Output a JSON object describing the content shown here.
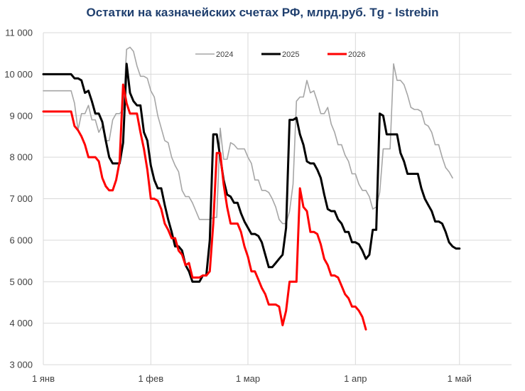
{
  "chart_data": {
    "type": "line",
    "title": "Остатки на казначейских счетах РФ, млрд.руб. Tg - Istrebin",
    "xlabel": "",
    "ylabel": "",
    "ylim": [
      3000,
      11000
    ],
    "xlim": [
      0,
      135
    ],
    "y_ticks": [
      "3 000",
      "4 000",
      "5 000",
      "6 000",
      "7 000",
      "8 000",
      "9 000",
      "10 000",
      "11 000"
    ],
    "y_tick_values": [
      3000,
      4000,
      5000,
      6000,
      7000,
      8000,
      9000,
      10000,
      11000
    ],
    "x_ticks": [
      {
        "label": "1 янв",
        "day": 0
      },
      {
        "label": "1 фев",
        "day": 31
      },
      {
        "label": "1 мар",
        "day": 59
      },
      {
        "label": "1 апр",
        "day": 90
      },
      {
        "label": "1 май",
        "day": 120
      }
    ],
    "legend_position": "top-center",
    "series": [
      {
        "name": "2024",
        "color": "#a6a6a6",
        "points": [
          [
            0,
            9600
          ],
          [
            8,
            9600
          ],
          [
            9,
            9300
          ],
          [
            10,
            8650
          ],
          [
            11,
            9050
          ],
          [
            12,
            9050
          ],
          [
            13,
            9250
          ],
          [
            14,
            8900
          ],
          [
            15,
            8900
          ],
          [
            16,
            8600
          ],
          [
            17,
            8750
          ],
          [
            18,
            8400
          ],
          [
            19,
            8400
          ],
          [
            20,
            8900
          ],
          [
            21,
            9050
          ],
          [
            22,
            9050
          ],
          [
            23,
            9150
          ],
          [
            24,
            10600
          ],
          [
            25,
            10650
          ],
          [
            26,
            10550
          ],
          [
            27,
            10200
          ],
          [
            28,
            9950
          ],
          [
            29,
            9950
          ],
          [
            30,
            9900
          ],
          [
            31,
            9600
          ],
          [
            32,
            9450
          ],
          [
            33,
            9000
          ],
          [
            34,
            8700
          ],
          [
            35,
            8400
          ],
          [
            36,
            8350
          ],
          [
            37,
            8000
          ],
          [
            38,
            7800
          ],
          [
            39,
            7650
          ],
          [
            40,
            7200
          ],
          [
            41,
            7050
          ],
          [
            42,
            7050
          ],
          [
            43,
            6900
          ],
          [
            44,
            6700
          ],
          [
            45,
            6500
          ],
          [
            46,
            6500
          ],
          [
            47,
            6500
          ],
          [
            48,
            6500
          ],
          [
            49,
            6550
          ],
          [
            50,
            6550
          ],
          [
            51,
            8700
          ],
          [
            52,
            7950
          ],
          [
            53,
            7950
          ],
          [
            54,
            8350
          ],
          [
            55,
            8300
          ],
          [
            56,
            8200
          ],
          [
            57,
            8200
          ],
          [
            58,
            8200
          ],
          [
            59,
            8000
          ],
          [
            60,
            7850
          ],
          [
            61,
            7450
          ],
          [
            62,
            7450
          ],
          [
            63,
            7200
          ],
          [
            64,
            7200
          ],
          [
            65,
            7150
          ],
          [
            66,
            7000
          ],
          [
            67,
            6800
          ],
          [
            68,
            6500
          ],
          [
            69,
            6400
          ],
          [
            70,
            6400
          ],
          [
            71,
            6700
          ],
          [
            72,
            7350
          ],
          [
            73,
            9350
          ],
          [
            74,
            9450
          ],
          [
            75,
            9450
          ],
          [
            76,
            9850
          ],
          [
            77,
            9550
          ],
          [
            78,
            9600
          ],
          [
            79,
            9350
          ],
          [
            80,
            9050
          ],
          [
            81,
            9050
          ],
          [
            82,
            9200
          ],
          [
            83,
            8800
          ],
          [
            84,
            8600
          ],
          [
            85,
            8300
          ],
          [
            86,
            8300
          ],
          [
            87,
            8050
          ],
          [
            88,
            7900
          ],
          [
            89,
            7600
          ],
          [
            90,
            7600
          ],
          [
            91,
            7350
          ],
          [
            92,
            7200
          ],
          [
            93,
            7200
          ],
          [
            94,
            7050
          ],
          [
            95,
            6750
          ],
          [
            96,
            6800
          ],
          [
            97,
            7150
          ],
          [
            98,
            8200
          ],
          [
            99,
            8200
          ],
          [
            100,
            8200
          ],
          [
            101,
            10250
          ],
          [
            102,
            9850
          ],
          [
            103,
            9850
          ],
          [
            104,
            9750
          ],
          [
            105,
            9500
          ],
          [
            106,
            9200
          ],
          [
            107,
            9150
          ],
          [
            108,
            9150
          ],
          [
            109,
            9100
          ],
          [
            110,
            8800
          ],
          [
            111,
            8750
          ],
          [
            112,
            8600
          ],
          [
            113,
            8300
          ],
          [
            114,
            8300
          ],
          [
            115,
            8000
          ],
          [
            116,
            7750
          ],
          [
            117,
            7650
          ],
          [
            118,
            7500
          ]
        ]
      },
      {
        "name": "2025",
        "color": "#000000",
        "points": [
          [
            0,
            10000
          ],
          [
            8,
            10000
          ],
          [
            9,
            9900
          ],
          [
            10,
            9900
          ],
          [
            11,
            9850
          ],
          [
            12,
            9550
          ],
          [
            13,
            9600
          ],
          [
            14,
            9350
          ],
          [
            15,
            9050
          ],
          [
            16,
            9050
          ],
          [
            17,
            8850
          ],
          [
            18,
            8400
          ],
          [
            19,
            8000
          ],
          [
            20,
            7850
          ],
          [
            21,
            7850
          ],
          [
            22,
            7850
          ],
          [
            23,
            8350
          ],
          [
            24,
            10250
          ],
          [
            25,
            9550
          ],
          [
            26,
            9350
          ],
          [
            27,
            9250
          ],
          [
            28,
            9250
          ],
          [
            29,
            8600
          ],
          [
            30,
            8400
          ],
          [
            31,
            7800
          ],
          [
            32,
            7450
          ],
          [
            33,
            7250
          ],
          [
            34,
            7250
          ],
          [
            35,
            6850
          ],
          [
            36,
            6500
          ],
          [
            37,
            6200
          ],
          [
            38,
            5850
          ],
          [
            39,
            5850
          ],
          [
            40,
            5750
          ],
          [
            41,
            5400
          ],
          [
            42,
            5250
          ],
          [
            43,
            5000
          ],
          [
            44,
            5000
          ],
          [
            45,
            5000
          ],
          [
            46,
            5150
          ],
          [
            47,
            5150
          ],
          [
            48,
            6000
          ],
          [
            49,
            8550
          ],
          [
            50,
            8550
          ],
          [
            51,
            8000
          ],
          [
            52,
            7450
          ],
          [
            53,
            7100
          ],
          [
            54,
            7050
          ],
          [
            55,
            6900
          ],
          [
            56,
            6900
          ],
          [
            57,
            6650
          ],
          [
            58,
            6450
          ],
          [
            59,
            6300
          ],
          [
            60,
            6150
          ],
          [
            61,
            6150
          ],
          [
            62,
            6100
          ],
          [
            63,
            5950
          ],
          [
            64,
            5650
          ],
          [
            65,
            5350
          ],
          [
            66,
            5350
          ],
          [
            67,
            5450
          ],
          [
            68,
            5550
          ],
          [
            69,
            5650
          ],
          [
            70,
            6300
          ],
          [
            71,
            8900
          ],
          [
            72,
            8900
          ],
          [
            73,
            8950
          ],
          [
            74,
            8550
          ],
          [
            75,
            8300
          ],
          [
            76,
            7900
          ],
          [
            77,
            7850
          ],
          [
            78,
            7850
          ],
          [
            79,
            7700
          ],
          [
            80,
            7500
          ],
          [
            81,
            7100
          ],
          [
            82,
            6750
          ],
          [
            83,
            6700
          ],
          [
            84,
            6700
          ],
          [
            85,
            6500
          ],
          [
            86,
            6400
          ],
          [
            87,
            6200
          ],
          [
            88,
            6200
          ],
          [
            89,
            5950
          ],
          [
            90,
            5950
          ],
          [
            91,
            5900
          ],
          [
            92,
            5750
          ],
          [
            93,
            5550
          ],
          [
            94,
            5650
          ],
          [
            95,
            6250
          ],
          [
            96,
            6250
          ],
          [
            97,
            9050
          ],
          [
            98,
            9000
          ],
          [
            99,
            8550
          ],
          [
            100,
            8550
          ],
          [
            101,
            8550
          ],
          [
            102,
            8550
          ],
          [
            103,
            8100
          ],
          [
            104,
            7900
          ],
          [
            105,
            7600
          ],
          [
            106,
            7600
          ],
          [
            107,
            7600
          ],
          [
            108,
            7600
          ],
          [
            109,
            7250
          ],
          [
            110,
            7000
          ],
          [
            111,
            6850
          ],
          [
            112,
            6700
          ],
          [
            113,
            6450
          ],
          [
            114,
            6450
          ],
          [
            115,
            6400
          ],
          [
            116,
            6200
          ],
          [
            117,
            5950
          ],
          [
            118,
            5850
          ],
          [
            119,
            5800
          ],
          [
            120,
            5800
          ]
        ]
      },
      {
        "name": "2026",
        "color": "#ff0000",
        "points": [
          [
            0,
            9100
          ],
          [
            8,
            9100
          ],
          [
            9,
            8750
          ],
          [
            10,
            8650
          ],
          [
            11,
            8500
          ],
          [
            12,
            8300
          ],
          [
            13,
            8000
          ],
          [
            14,
            8000
          ],
          [
            15,
            8000
          ],
          [
            16,
            7900
          ],
          [
            17,
            7500
          ],
          [
            18,
            7300
          ],
          [
            19,
            7200
          ],
          [
            20,
            7200
          ],
          [
            21,
            7450
          ],
          [
            22,
            7900
          ],
          [
            23,
            9750
          ],
          [
            24,
            9300
          ],
          [
            25,
            9050
          ],
          [
            26,
            9050
          ],
          [
            27,
            9050
          ],
          [
            28,
            8600
          ],
          [
            29,
            8200
          ],
          [
            30,
            7700
          ],
          [
            31,
            7000
          ],
          [
            32,
            7000
          ],
          [
            33,
            6950
          ],
          [
            34,
            6750
          ],
          [
            35,
            6400
          ],
          [
            36,
            6250
          ],
          [
            37,
            6050
          ],
          [
            38,
            6050
          ],
          [
            39,
            5750
          ],
          [
            40,
            5650
          ],
          [
            41,
            5400
          ],
          [
            42,
            5450
          ],
          [
            43,
            5100
          ],
          [
            44,
            5100
          ],
          [
            45,
            5100
          ],
          [
            46,
            5150
          ],
          [
            47,
            5150
          ],
          [
            48,
            5250
          ],
          [
            49,
            6400
          ],
          [
            50,
            8100
          ],
          [
            51,
            8100
          ],
          [
            52,
            7350
          ],
          [
            53,
            6800
          ],
          [
            54,
            6400
          ],
          [
            55,
            6400
          ],
          [
            56,
            6400
          ],
          [
            57,
            6200
          ],
          [
            58,
            5850
          ],
          [
            59,
            5600
          ],
          [
            60,
            5250
          ],
          [
            61,
            5250
          ],
          [
            62,
            5050
          ],
          [
            63,
            4850
          ],
          [
            64,
            4700
          ],
          [
            65,
            4450
          ],
          [
            66,
            4450
          ],
          [
            67,
            4450
          ],
          [
            68,
            4400
          ],
          [
            69,
            3950
          ],
          [
            70,
            4300
          ],
          [
            71,
            5000
          ],
          [
            72,
            5000
          ],
          [
            73,
            5000
          ],
          [
            74,
            7250
          ],
          [
            75,
            6800
          ],
          [
            76,
            6700
          ],
          [
            77,
            6200
          ],
          [
            78,
            6200
          ],
          [
            79,
            6150
          ],
          [
            80,
            5900
          ],
          [
            81,
            5550
          ],
          [
            82,
            5400
          ],
          [
            83,
            5150
          ],
          [
            84,
            5150
          ],
          [
            85,
            5100
          ],
          [
            86,
            4900
          ],
          [
            87,
            4700
          ],
          [
            88,
            4600
          ],
          [
            89,
            4400
          ],
          [
            90,
            4400
          ],
          [
            91,
            4300
          ],
          [
            92,
            4150
          ],
          [
            93,
            3850
          ]
        ]
      }
    ]
  }
}
